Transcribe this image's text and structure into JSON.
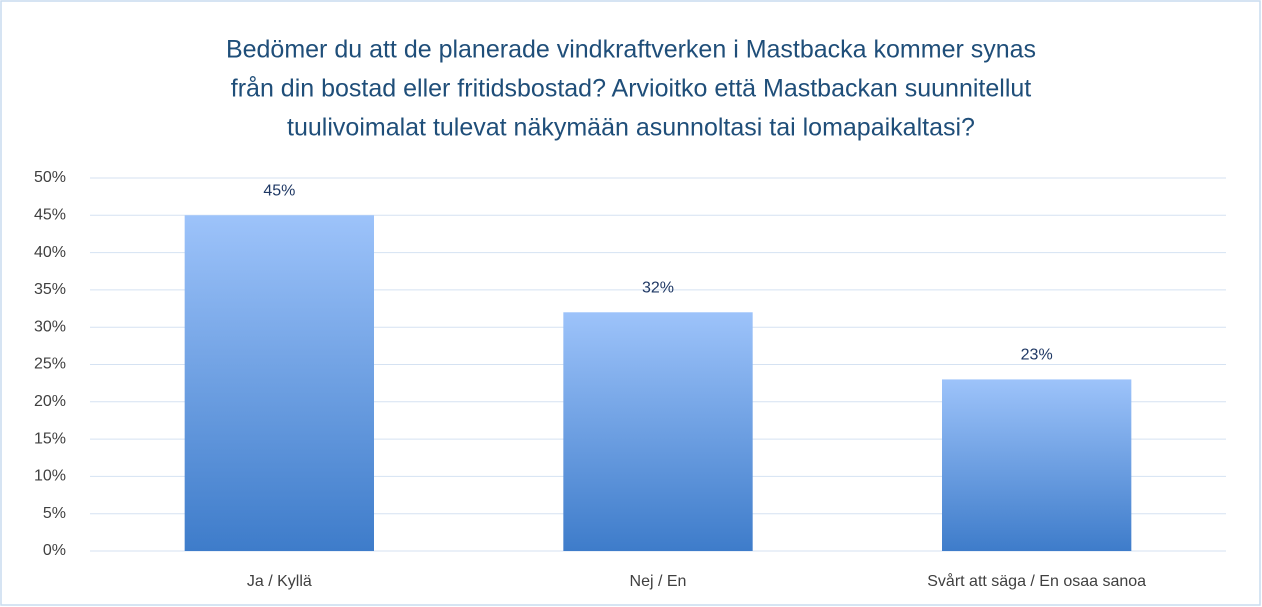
{
  "chart_data": {
    "type": "bar",
    "title": [
      "Bedömer du att de planerade vindkraftverken i Mastbacka kommer synas",
      "från din bostad eller fritidsbostad? Arvioitko että Mastbackan suunnitellut",
      "tuulivoimalat tulevat näkymään asunnoltasi tai lomapaikaltasi?"
    ],
    "categories": [
      "Ja / Kyllä",
      "Nej / En",
      "Svårt att säga / En osaa sanoa"
    ],
    "values": [
      45,
      32,
      23
    ],
    "value_labels": [
      "45%",
      "32%",
      "23%"
    ],
    "color": "#3e7cca",
    "ylim": [
      0,
      50
    ],
    "yticks": [
      {
        "value": 0,
        "label": "0%"
      },
      {
        "value": 5,
        "label": "5%"
      },
      {
        "value": 10,
        "label": "10%"
      },
      {
        "value": 15,
        "label": "15%"
      },
      {
        "value": 20,
        "label": "20%"
      },
      {
        "value": 25,
        "label": "25%"
      },
      {
        "value": 30,
        "label": "30%"
      },
      {
        "value": 35,
        "label": "35%"
      },
      {
        "value": 40,
        "label": "40%"
      },
      {
        "value": 45,
        "label": "45%"
      },
      {
        "value": 50,
        "label": "50%"
      }
    ],
    "grid": true
  }
}
